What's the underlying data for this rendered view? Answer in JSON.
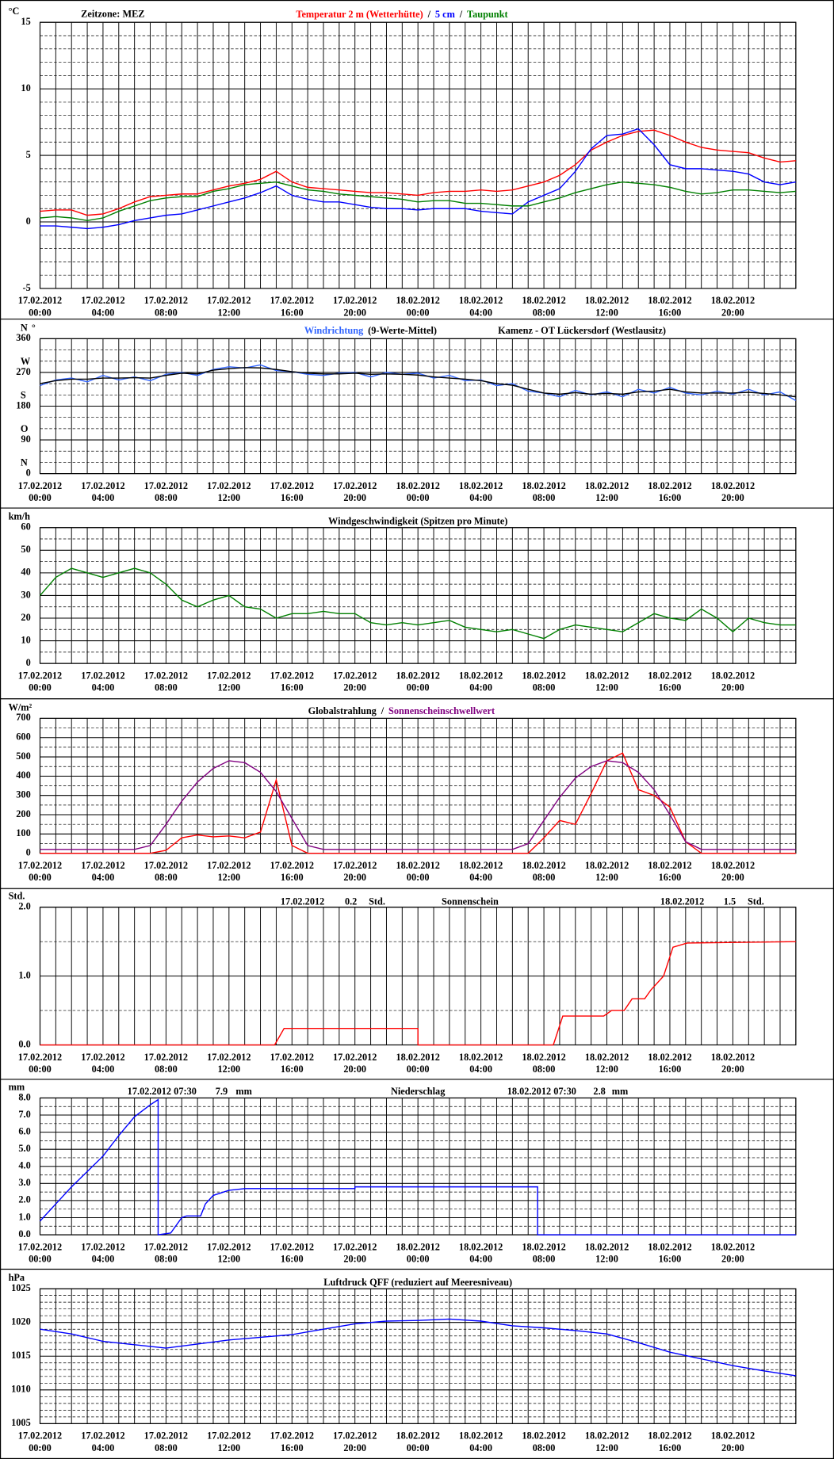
{
  "time_axis": {
    "grid_step": 1,
    "xticks": [
      {
        "value": 0,
        "label": "00:00"
      },
      {
        "value": 4,
        "label": "04:00"
      },
      {
        "value": 8,
        "label": "08:00"
      },
      {
        "value": 12,
        "label": "12:00"
      },
      {
        "value": 16,
        "label": "16:00"
      },
      {
        "value": 20,
        "label": "20:00"
      },
      {
        "value": 24,
        "label": "00:00"
      },
      {
        "value": 28,
        "label": "04:00"
      },
      {
        "value": 32,
        "label": "08:00"
      },
      {
        "value": 36,
        "label": "12:00"
      },
      {
        "value": 40,
        "label": "16:00"
      },
      {
        "value": 44,
        "label": "20:00"
      }
    ],
    "dates": [
      "17.02.2012",
      "17.02.2012",
      "17.02.2012",
      "17.02.2012",
      "17.02.2012",
      "17.02.2012",
      "18.02.2012",
      "18.02.2012",
      "18.02.2012",
      "18.02.2012",
      "18.02.2012",
      "18.02.2012"
    ]
  },
  "chart_data": [
    {
      "type": "line",
      "unit": "°C",
      "annotations": [
        "Zeitzone: MEZ"
      ],
      "legend_separator": "/",
      "x": [
        0,
        1,
        2,
        3,
        4,
        5,
        6,
        7,
        8,
        9,
        10,
        11,
        12,
        13,
        14,
        15,
        16,
        17,
        18,
        19,
        20,
        21,
        22,
        23,
        24,
        25,
        26,
        27,
        28,
        29,
        30,
        31,
        32,
        33,
        34,
        35,
        36,
        37,
        38,
        39,
        40,
        41,
        42,
        43,
        44,
        45,
        46,
        47,
        48
      ],
      "xlim": [
        0,
        48
      ],
      "ylim": [
        -5,
        15
      ],
      "yticks": [
        -5,
        0,
        5,
        10,
        15
      ],
      "minor_step": 1,
      "series": [
        {
          "name": "Temperatur 2 m (Wetterhütte)",
          "color": "#ff0000",
          "values": [
            0.8,
            0.9,
            0.9,
            0.5,
            0.6,
            1.0,
            1.5,
            1.9,
            2.0,
            2.1,
            2.1,
            2.4,
            2.7,
            2.9,
            3.2,
            3.8,
            3.0,
            2.6,
            2.5,
            2.4,
            2.3,
            2.2,
            2.2,
            2.1,
            2.0,
            2.2,
            2.3,
            2.3,
            2.4,
            2.3,
            2.4,
            2.7,
            3.0,
            3.5,
            4.3,
            5.4,
            6.0,
            6.5,
            6.8,
            6.9,
            6.5,
            6.0,
            5.6,
            5.4,
            5.3,
            5.2,
            4.8,
            4.5,
            4.6
          ]
        },
        {
          "name": "5 cm",
          "color": "#0000ff",
          "values": [
            -0.3,
            -0.3,
            -0.4,
            -0.5,
            -0.4,
            -0.2,
            0.1,
            0.3,
            0.5,
            0.6,
            0.9,
            1.2,
            1.5,
            1.8,
            2.2,
            2.7,
            2.0,
            1.7,
            1.5,
            1.5,
            1.3,
            1.1,
            1.0,
            1.0,
            0.9,
            1.0,
            1.0,
            1.0,
            0.8,
            0.7,
            0.6,
            1.5,
            2.0,
            2.5,
            3.8,
            5.5,
            6.5,
            6.6,
            7.0,
            5.8,
            4.3,
            4.0,
            4.0,
            3.9,
            3.8,
            3.6,
            3.0,
            2.8,
            3.0
          ]
        },
        {
          "name": "Taupunkt",
          "color": "#008000",
          "values": [
            0.3,
            0.4,
            0.3,
            0.1,
            0.3,
            0.8,
            1.2,
            1.6,
            1.8,
            1.9,
            1.9,
            2.3,
            2.5,
            2.8,
            2.9,
            3.0,
            2.7,
            2.4,
            2.3,
            2.1,
            2.0,
            1.9,
            1.8,
            1.7,
            1.5,
            1.6,
            1.6,
            1.4,
            1.4,
            1.3,
            1.2,
            1.2,
            1.5,
            1.8,
            2.2,
            2.5,
            2.8,
            3.0,
            2.9,
            2.8,
            2.6,
            2.3,
            2.1,
            2.2,
            2.4,
            2.4,
            2.3,
            2.2,
            2.3
          ]
        }
      ]
    },
    {
      "type": "line",
      "unit": "°",
      "station": "Kamenz - OT Lückersdorf (Westlausitz)",
      "x": [
        0,
        1,
        2,
        3,
        4,
        5,
        6,
        7,
        8,
        9,
        10,
        11,
        12,
        13,
        14,
        15,
        16,
        17,
        18,
        19,
        20,
        21,
        22,
        23,
        24,
        25,
        26,
        27,
        28,
        29,
        30,
        31,
        32,
        33,
        34,
        35,
        36,
        37,
        38,
        39,
        40,
        41,
        42,
        43,
        44,
        45,
        46,
        47,
        48
      ],
      "xlim": [
        0,
        48
      ],
      "ylim": [
        0,
        360
      ],
      "yticks": [
        0,
        90,
        180,
        270,
        360
      ],
      "minor_step": 30,
      "compass_ticks": [
        {
          "value": 0,
          "label": "N"
        },
        {
          "value": 90,
          "label": "O"
        },
        {
          "value": 180,
          "label": "S"
        },
        {
          "value": 270,
          "label": "W"
        },
        {
          "value": 360,
          "label": "N"
        }
      ],
      "series": [
        {
          "name": "Windrichtung",
          "color": "#3366ff",
          "values": [
            235,
            250,
            255,
            245,
            262,
            250,
            258,
            248,
            265,
            270,
            262,
            278,
            285,
            282,
            290,
            275,
            272,
            265,
            262,
            268,
            270,
            258,
            270,
            265,
            268,
            255,
            262,
            248,
            250,
            235,
            240,
            220,
            215,
            205,
            222,
            210,
            218,
            205,
            225,
            215,
            230,
            215,
            210,
            220,
            212,
            225,
            210,
            218,
            195
          ]
        },
        {
          "name": "(9-Werte-Mittel)",
          "color": "#000000",
          "values": [
            240,
            248,
            252,
            252,
            255,
            255,
            256,
            255,
            262,
            268,
            266,
            276,
            280,
            283,
            282,
            278,
            272,
            268,
            266,
            266,
            268,
            265,
            266,
            265,
            263,
            258,
            255,
            252,
            248,
            240,
            236,
            225,
            215,
            212,
            216,
            212,
            214,
            212,
            218,
            220,
            225,
            218,
            215,
            215,
            215,
            217,
            214,
            210,
            205
          ]
        }
      ]
    },
    {
      "type": "line",
      "unit": "km/h",
      "title": "Windgeschwindigkeit (Spitzen pro Minute)",
      "x": [
        0,
        1,
        2,
        3,
        4,
        5,
        6,
        7,
        8,
        9,
        10,
        11,
        12,
        13,
        14,
        15,
        16,
        17,
        18,
        19,
        20,
        21,
        22,
        23,
        24,
        25,
        26,
        27,
        28,
        29,
        30,
        31,
        32,
        33,
        34,
        35,
        36,
        37,
        38,
        39,
        40,
        41,
        42,
        43,
        44,
        45,
        46,
        47,
        48
      ],
      "xlim": [
        0,
        48
      ],
      "ylim": [
        0,
        60
      ],
      "yticks": [
        0,
        10,
        20,
        30,
        40,
        50,
        60
      ],
      "minor_step": 5,
      "series": [
        {
          "color": "#008000",
          "values": [
            30,
            38,
            42,
            40,
            38,
            40,
            42,
            40,
            35,
            28,
            25,
            28,
            30,
            25,
            24,
            20,
            22,
            22,
            23,
            22,
            22,
            18,
            17,
            18,
            17,
            18,
            19,
            16,
            15,
            14,
            15,
            13,
            11,
            15,
            17,
            16,
            15,
            14,
            18,
            22,
            20,
            19,
            24,
            20,
            14,
            20,
            18,
            17,
            17
          ]
        }
      ]
    },
    {
      "type": "line",
      "unit": "W/m²",
      "legend_separator": "/",
      "x": [
        0,
        1,
        2,
        3,
        4,
        5,
        6,
        7,
        8,
        9,
        10,
        11,
        12,
        13,
        14,
        15,
        16,
        17,
        18,
        19,
        20,
        21,
        22,
        23,
        24,
        25,
        26,
        27,
        28,
        29,
        30,
        31,
        32,
        33,
        34,
        35,
        36,
        37,
        38,
        39,
        40,
        41,
        42,
        43,
        44,
        45,
        46,
        47,
        48
      ],
      "xlim": [
        0,
        48
      ],
      "ylim": [
        0,
        700
      ],
      "yticks": [
        0,
        100,
        200,
        300,
        400,
        500,
        600,
        700
      ],
      "minor_step": 50,
      "series": [
        {
          "name": "Globalstrahlung",
          "color": "#ff0000",
          "label_color": "#000000",
          "values": [
            0,
            0,
            0,
            0,
            0,
            0,
            0,
            0,
            15,
            80,
            95,
            85,
            90,
            80,
            110,
            380,
            40,
            0,
            0,
            0,
            0,
            0,
            0,
            0,
            0,
            0,
            0,
            0,
            0,
            0,
            0,
            0,
            80,
            170,
            150,
            310,
            480,
            520,
            330,
            300,
            240,
            60,
            0,
            0,
            0,
            0,
            0,
            0,
            0
          ]
        },
        {
          "name": "Sonnenscheinschwellwert",
          "color": "#800080",
          "values": [
            20,
            20,
            20,
            20,
            20,
            20,
            20,
            40,
            150,
            270,
            370,
            440,
            480,
            470,
            420,
            320,
            180,
            40,
            20,
            20,
            20,
            20,
            20,
            20,
            20,
            20,
            20,
            20,
            20,
            20,
            20,
            50,
            170,
            290,
            390,
            450,
            480,
            470,
            420,
            330,
            200,
            60,
            20,
            20,
            20,
            20,
            20,
            20,
            20
          ]
        }
      ]
    },
    {
      "type": "line",
      "unit": "Std.",
      "title": "Sonnenschein",
      "annotations": [
        "17.02.2012",
        "0.2",
        "Std.",
        "18.02.2012",
        "1.5",
        "Std."
      ],
      "x": [
        0,
        14.9,
        15.5,
        24,
        24,
        32.6,
        33.2,
        35.8,
        36.3,
        37.1,
        37.6,
        38.4,
        38.8,
        39.6,
        40.2,
        41.1,
        48
      ],
      "xlim": [
        0,
        48
      ],
      "ylim": [
        0,
        2
      ],
      "yticks": [
        {
          "value": 0,
          "label": "0.0"
        },
        {
          "value": 1,
          "label": "1.0"
        },
        {
          "value": 2,
          "label": "2.0"
        }
      ],
      "minor_step": 0.5,
      "series": [
        {
          "color": "#ff0000",
          "values": [
            0,
            0,
            0.24,
            0.24,
            0,
            0,
            0.42,
            0.42,
            0.5,
            0.5,
            0.67,
            0.67,
            0.8,
            1.0,
            1.42,
            1.48,
            1.5
          ]
        }
      ]
    },
    {
      "type": "line",
      "unit": "mm",
      "title": "Niederschlag",
      "annotations": [
        "17.02.2012 07:30",
        "7.9",
        "mm",
        "18.02.2012 07:30",
        "2.8",
        "mm"
      ],
      "x": [
        0,
        1,
        2,
        3,
        4,
        5,
        6,
        7,
        7.5,
        7.5,
        8.3,
        9,
        9.3,
        10.2,
        10.5,
        11,
        12,
        13,
        14,
        20,
        20,
        31.6,
        31.6,
        48
      ],
      "xlim": [
        0,
        48
      ],
      "ylim": [
        0,
        8
      ],
      "yticks": [
        {
          "value": 0,
          "label": "0.0"
        },
        {
          "value": 1,
          "label": "1.0"
        },
        {
          "value": 2,
          "label": "2.0"
        },
        {
          "value": 3,
          "label": "3.0"
        },
        {
          "value": 4,
          "label": "4.0"
        },
        {
          "value": 5,
          "label": "5.0"
        },
        {
          "value": 6,
          "label": "6.0"
        },
        {
          "value": 7,
          "label": "7.0"
        },
        {
          "value": 8,
          "label": "8.0"
        }
      ],
      "minor_step": 0.5,
      "series": [
        {
          "color": "#0000ff",
          "values": [
            0.8,
            1.8,
            2.8,
            3.7,
            4.6,
            5.8,
            6.9,
            7.6,
            7.9,
            0,
            0.1,
            1.0,
            1.1,
            1.1,
            1.8,
            2.3,
            2.6,
            2.7,
            2.7,
            2.7,
            2.8,
            2.8,
            0,
            0
          ]
        }
      ]
    },
    {
      "type": "line",
      "unit": "hPa",
      "title": "Luftdruck QFF (reduziert auf Meeresniveau)",
      "x": [
        0,
        2,
        4,
        6,
        8,
        10,
        12,
        14,
        16,
        18,
        20,
        22,
        24,
        26,
        28,
        30,
        32,
        34,
        36,
        38,
        40,
        42,
        44,
        46,
        48
      ],
      "xlim": [
        0,
        48
      ],
      "ylim": [
        1005,
        1025
      ],
      "yticks": [
        1005,
        1010,
        1015,
        1020,
        1025
      ],
      "minor_step": 1,
      "series": [
        {
          "color": "#0000ff",
          "values": [
            1019,
            1018.3,
            1017.2,
            1016.7,
            1016.2,
            1016.8,
            1017.4,
            1017.8,
            1018.2,
            1019,
            1019.8,
            1020.2,
            1020.3,
            1020.5,
            1020.2,
            1019.5,
            1019.2,
            1018.8,
            1018.3,
            1017,
            1015.6,
            1014.6,
            1013.6,
            1012.8,
            1012.1
          ]
        }
      ]
    }
  ]
}
